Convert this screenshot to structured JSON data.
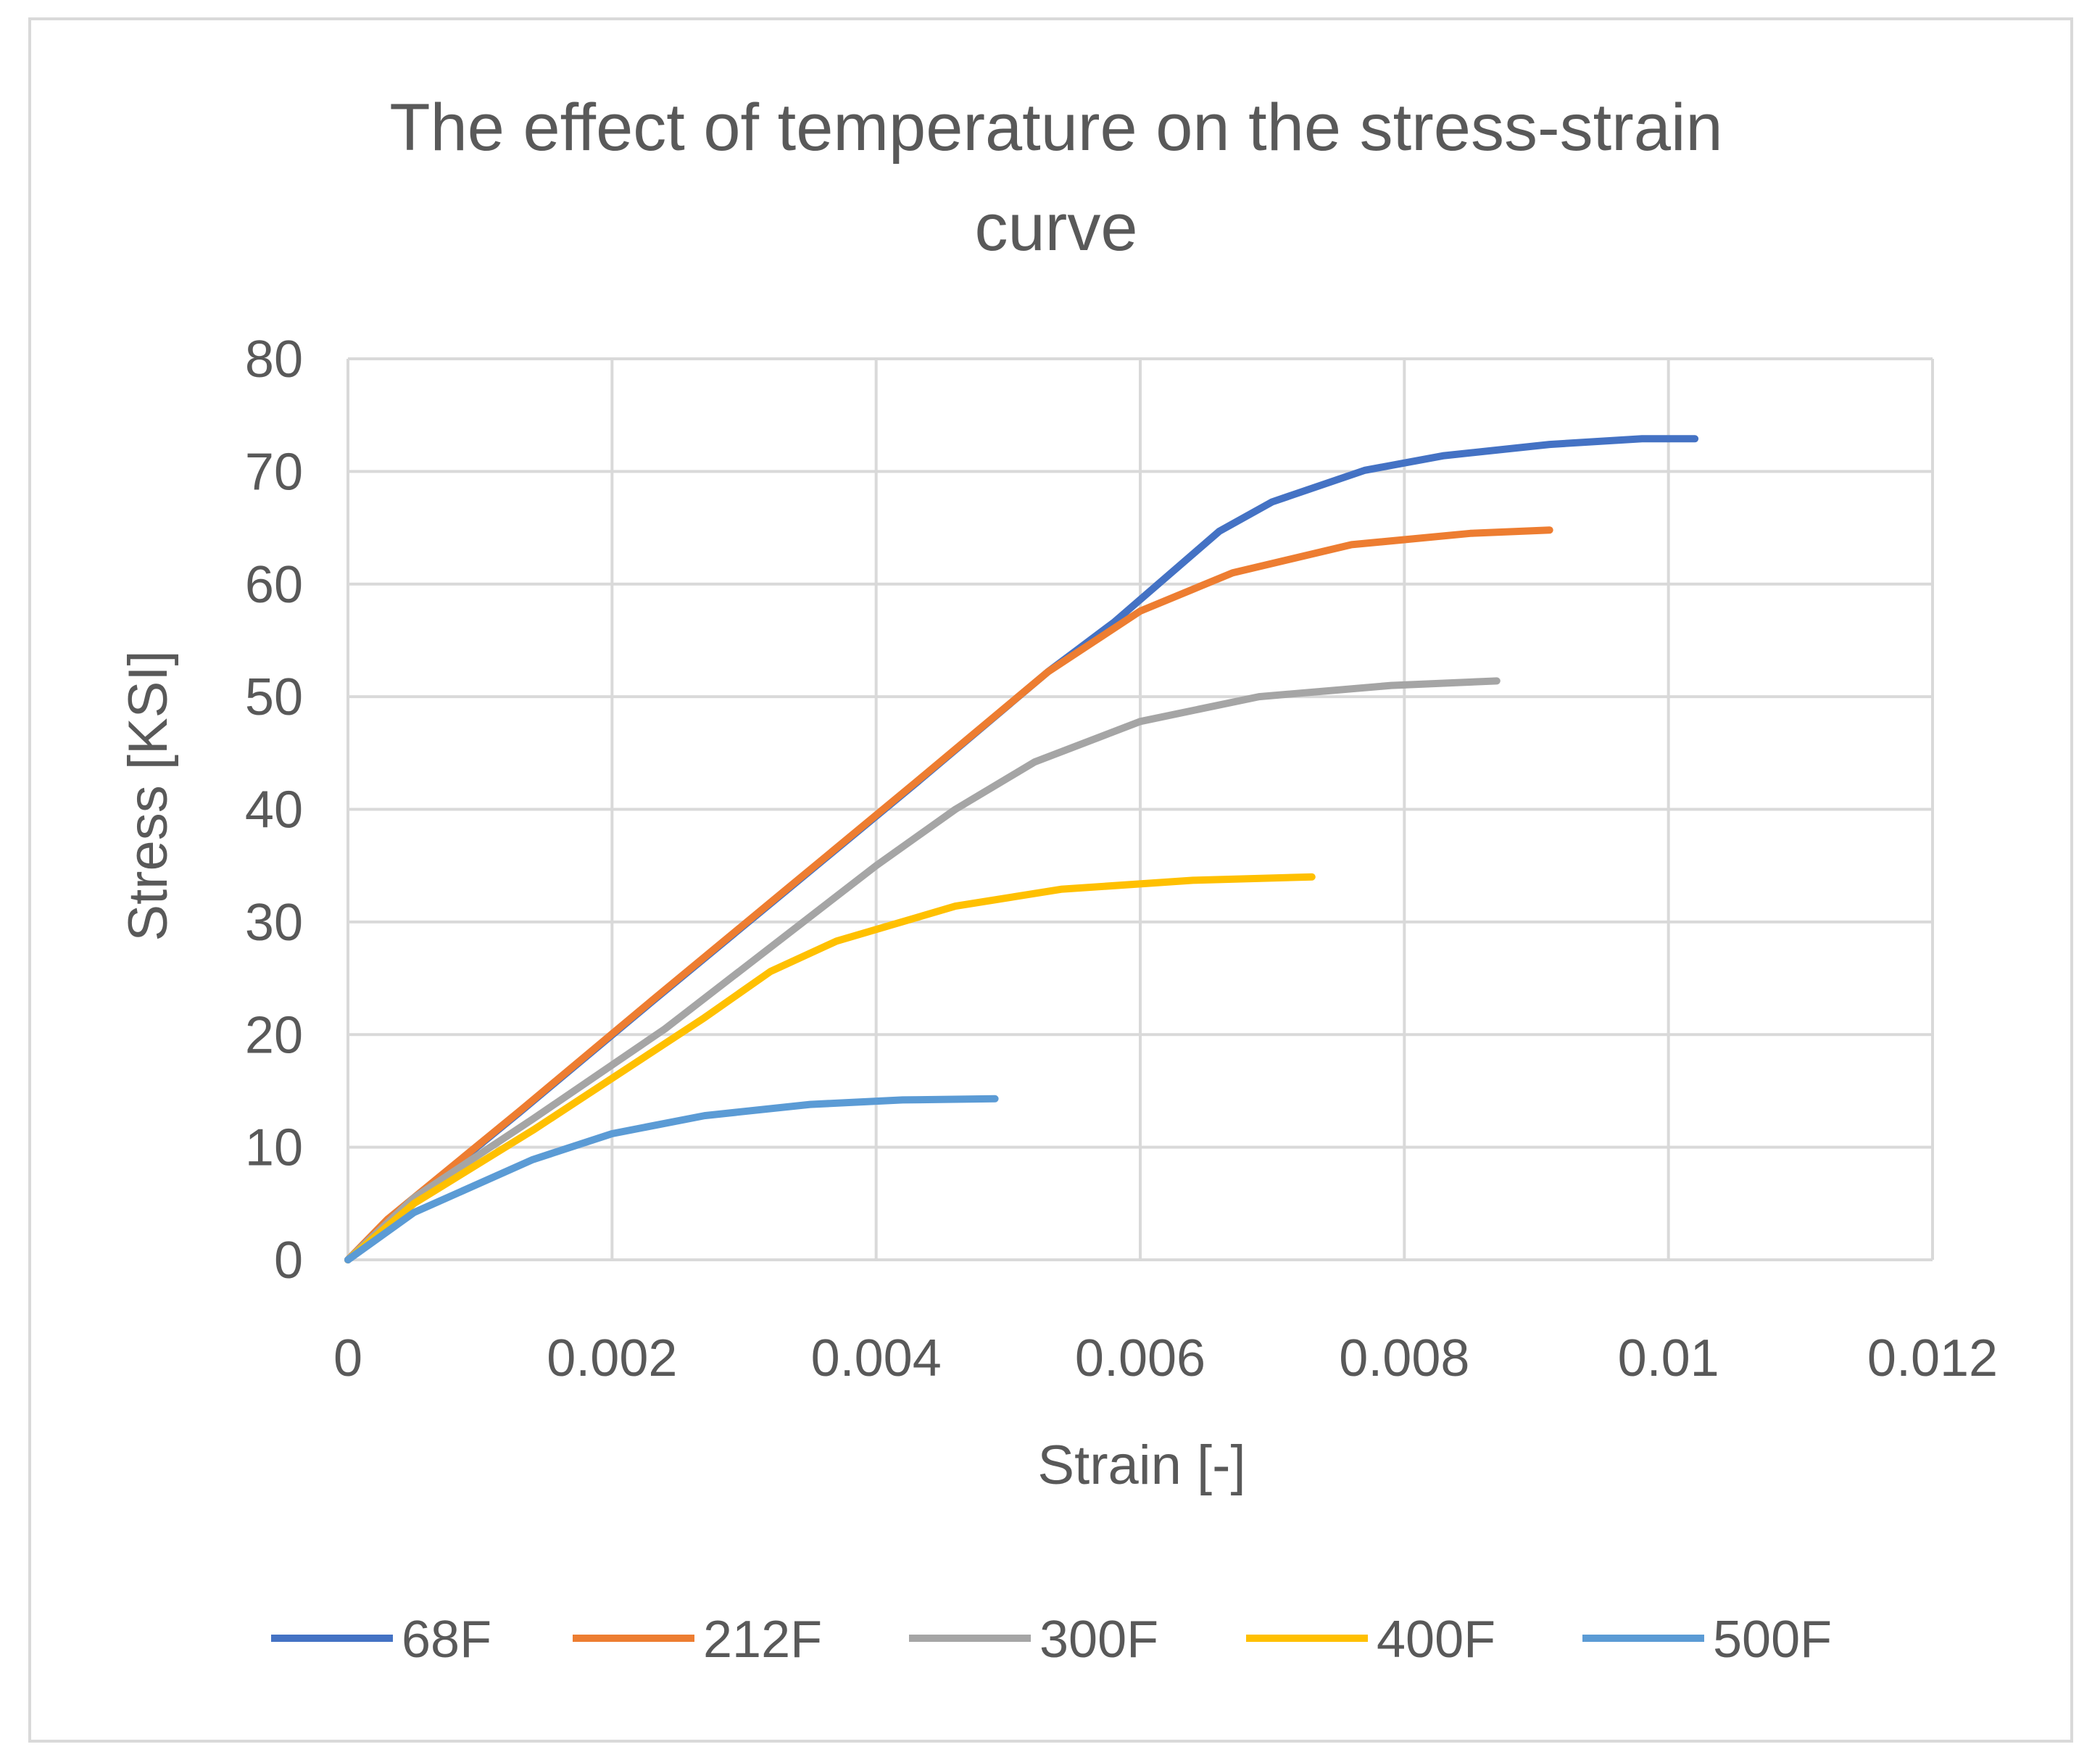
{
  "chart_data": {
    "type": "line",
    "title": "The effect of temperature on the stress-strain curve",
    "title_lines": [
      "The effect of temperature on the stress-strain",
      "curve"
    ],
    "xlabel": "Strain [-]",
    "ylabel": "Stress [KSI]",
    "xlim": [
      0,
      0.012
    ],
    "ylim": [
      0,
      80
    ],
    "x_ticks": [
      0,
      0.002,
      0.004,
      0.006,
      0.008,
      0.01,
      0.012
    ],
    "x_tick_labels": [
      "0",
      "0.002",
      "0.004",
      "0.006",
      "0.008",
      "0.01",
      "0.012"
    ],
    "y_ticks": [
      0,
      10,
      20,
      30,
      40,
      50,
      60,
      70,
      80
    ],
    "y_tick_labels": [
      "0",
      "10",
      "20",
      "30",
      "40",
      "50",
      "60",
      "70",
      "80"
    ],
    "grid": true,
    "legend_position": "bottom",
    "series": [
      {
        "name": "68F",
        "color": "#4472c4",
        "points": [
          [
            0,
            0
          ],
          [
            0.0003,
            3.5
          ],
          [
            0.0013,
            13.1
          ],
          [
            0.0023,
            22.9
          ],
          [
            0.0033,
            32.6
          ],
          [
            0.0043,
            42.3
          ],
          [
            0.0053,
            52.2
          ],
          [
            0.0058,
            56.6
          ],
          [
            0.0066,
            64.7
          ],
          [
            0.007,
            67.3
          ],
          [
            0.0077,
            70.1
          ],
          [
            0.0083,
            71.4
          ],
          [
            0.0091,
            72.4
          ],
          [
            0.0098,
            72.9
          ],
          [
            0.0102,
            72.9
          ]
        ]
      },
      {
        "name": "212F",
        "color": "#ed7d31",
        "points": [
          [
            0,
            0
          ],
          [
            0.0003,
            3.6
          ],
          [
            0.0013,
            13.2
          ],
          [
            0.0023,
            23.0
          ],
          [
            0.0033,
            32.7
          ],
          [
            0.0043,
            42.4
          ],
          [
            0.0053,
            52.2
          ],
          [
            0.006,
            57.6
          ],
          [
            0.0067,
            61.0
          ],
          [
            0.0076,
            63.5
          ],
          [
            0.0085,
            64.5
          ],
          [
            0.0091,
            64.8
          ]
        ]
      },
      {
        "name": "300F",
        "color": "#a5a5a5",
        "points": [
          [
            0,
            0
          ],
          [
            0.0005,
            5.5
          ],
          [
            0.0014,
            12.5
          ],
          [
            0.0024,
            20.5
          ],
          [
            0.004,
            35.0
          ],
          [
            0.0046,
            40.0
          ],
          [
            0.0052,
            44.2
          ],
          [
            0.006,
            47.8
          ],
          [
            0.0069,
            50.0
          ],
          [
            0.0079,
            51.0
          ],
          [
            0.0087,
            51.4
          ]
        ]
      },
      {
        "name": "400F",
        "color": "#ffc000",
        "points": [
          [
            0,
            0
          ],
          [
            0.0005,
            5.0
          ],
          [
            0.0014,
            11.5
          ],
          [
            0.0027,
            21.5
          ],
          [
            0.0032,
            25.6
          ],
          [
            0.0037,
            28.3
          ],
          [
            0.0046,
            31.4
          ],
          [
            0.0054,
            32.9
          ],
          [
            0.0064,
            33.7
          ],
          [
            0.0073,
            34.0
          ]
        ]
      },
      {
        "name": "500F",
        "color": "#5b9bd5",
        "points": [
          [
            0,
            0
          ],
          [
            0.0005,
            4.2
          ],
          [
            0.0014,
            8.9
          ],
          [
            0.002,
            11.2
          ],
          [
            0.0027,
            12.8
          ],
          [
            0.0035,
            13.8
          ],
          [
            0.0042,
            14.2
          ],
          [
            0.0049,
            14.3
          ]
        ]
      }
    ]
  }
}
